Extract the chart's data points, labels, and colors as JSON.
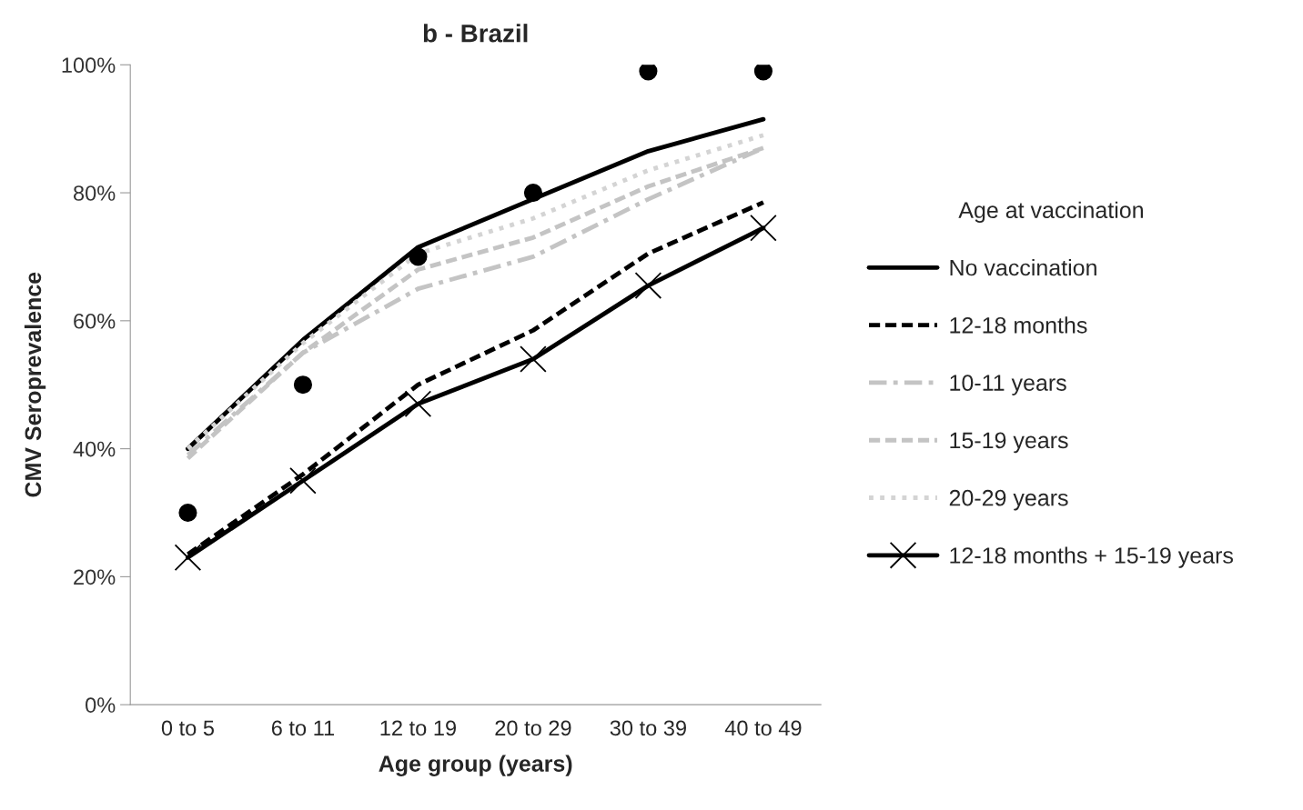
{
  "chart_data": {
    "type": "line",
    "title": "b - Brazil",
    "xlabel": "Age group (years)",
    "ylabel": "CMV Seroprevalence",
    "categories": [
      "0 to 5",
      "6 to 11",
      "12 to 19",
      "20 to 29",
      "30 to 39",
      "40 to 49"
    ],
    "ylim": [
      0,
      100
    ],
    "yticks": [
      {
        "value": 0,
        "label": "0%"
      },
      {
        "value": 20,
        "label": "20%"
      },
      {
        "value": 40,
        "label": "40%"
      },
      {
        "value": 60,
        "label": "60%"
      },
      {
        "value": 80,
        "label": "80%"
      },
      {
        "value": 100,
        "label": "100%"
      }
    ],
    "grid": false,
    "legend": "right",
    "legend_title": "Age at vaccination",
    "series": [
      {
        "type": "scatter",
        "color": "#000000",
        "marker": "circle",
        "values": [
          30,
          50,
          70,
          80,
          99,
          99
        ]
      },
      {
        "name": "No vaccination",
        "color": "#000000",
        "line_style": "solid",
        "values": [
          40,
          57,
          71.5,
          79,
          86.5,
          91.5
        ]
      },
      {
        "name": "12-18 months",
        "color": "#000000",
        "line_style": "dashed",
        "values": [
          23.5,
          36,
          50,
          58.5,
          70.5,
          78.5
        ]
      },
      {
        "name": "10-11 years",
        "color": "#c4c4c4",
        "line_style": "dashdot",
        "values": [
          39,
          55,
          65,
          70,
          79,
          87
        ]
      },
      {
        "name": "15-19 years",
        "color": "#c4c4c4",
        "line_style": "dashed",
        "values": [
          38.5,
          55,
          68,
          73,
          81,
          87
        ]
      },
      {
        "name": "20-29 years",
        "color": "#d4d4d4",
        "line_style": "dotted",
        "values": [
          40,
          56.5,
          70.5,
          76,
          83.5,
          89
        ]
      },
      {
        "name": "12-18 months + 15-19 years",
        "color": "#000000",
        "line_style": "solid",
        "marker": "cross",
        "values": [
          23,
          35,
          47,
          54,
          65.5,
          74.5
        ]
      }
    ]
  }
}
